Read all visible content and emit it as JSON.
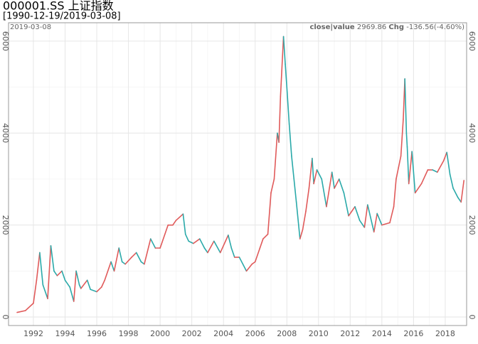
{
  "chart_data": {
    "type": "line",
    "title": "000001.SS 上证指数",
    "subtitle": "[1990-12-19/2019-03-08]",
    "date_label": "2019-03-08",
    "legend_label": "close|value",
    "last_value": "2969.86",
    "chg_label": "Chg",
    "chg_value": "-136.56(-4.60%)",
    "up_color": "#e05a5a",
    "down_color": "#2aa9a9",
    "grid": true,
    "xlim": [
      1990.43,
      2019.35
    ],
    "xticks": [
      1992,
      1994,
      1996,
      1998,
      2000,
      2002,
      2004,
      2006,
      2008,
      2010,
      2012,
      2014,
      2016,
      2018
    ],
    "ylim": [
      -185,
      6400
    ],
    "yticks": [
      0,
      2000,
      4000,
      6000
    ],
    "series": [
      {
        "name": "close",
        "x": [
          1990.97,
          1991.5,
          1992.0,
          1992.2,
          1992.4,
          1992.6,
          1992.9,
          1993.1,
          1993.3,
          1993.5,
          1993.8,
          1994.0,
          1994.3,
          1994.55,
          1994.7,
          1994.9,
          1995.0,
          1995.4,
          1995.6,
          1996.0,
          1996.3,
          1996.5,
          1996.9,
          1997.1,
          1997.4,
          1997.6,
          1997.8,
          1998.2,
          1998.5,
          1998.8,
          1999.0,
          1999.4,
          1999.7,
          2000.0,
          2000.3,
          2000.5,
          2000.8,
          2001.0,
          2001.45,
          2001.6,
          2001.8,
          2002.1,
          2002.5,
          2002.8,
          2003.0,
          2003.4,
          2003.8,
          2004.3,
          2004.5,
          2004.7,
          2005.0,
          2005.45,
          2005.8,
          2006.0,
          2006.3,
          2006.5,
          2006.8,
          2007.0,
          2007.2,
          2007.4,
          2007.5,
          2007.6,
          2007.79,
          2007.9,
          2008.0,
          2008.15,
          2008.3,
          2008.45,
          2008.6,
          2008.83,
          2009.0,
          2009.2,
          2009.4,
          2009.6,
          2009.7,
          2009.9,
          2010.2,
          2010.5,
          2010.85,
          2011.0,
          2011.3,
          2011.6,
          2011.9,
          2012.1,
          2012.3,
          2012.6,
          2012.9,
          2013.1,
          2013.5,
          2013.7,
          2014.0,
          2014.5,
          2014.75,
          2014.9,
          2015.2,
          2015.35,
          2015.45,
          2015.55,
          2015.6,
          2015.7,
          2015.9,
          2016.1,
          2016.5,
          2016.9,
          2017.2,
          2017.5,
          2017.9,
          2018.1,
          2018.3,
          2018.5,
          2018.8,
          2019.0,
          2019.18
        ],
        "values": [
          100,
          140,
          300,
          800,
          1400,
          700,
          400,
          1550,
          1000,
          900,
          1000,
          800,
          650,
          340,
          1000,
          700,
          620,
          800,
          600,
          550,
          650,
          800,
          1200,
          1000,
          1500,
          1200,
          1150,
          1300,
          1400,
          1200,
          1150,
          1700,
          1500,
          1500,
          1800,
          2000,
          2000,
          2100,
          2240,
          1800,
          1650,
          1600,
          1700,
          1500,
          1400,
          1650,
          1400,
          1780,
          1500,
          1300,
          1300,
          1000,
          1150,
          1200,
          1500,
          1700,
          1800,
          2700,
          3000,
          4000,
          3800,
          4800,
          6100,
          5500,
          5000,
          4200,
          3500,
          3000,
          2500,
          1700,
          1900,
          2300,
          2800,
          3450,
          2900,
          3200,
          3000,
          2400,
          3150,
          2800,
          3000,
          2700,
          2200,
          2300,
          2400,
          2100,
          1950,
          2440,
          1850,
          2250,
          2000,
          2050,
          2400,
          3000,
          3500,
          4300,
          5180,
          4000,
          3700,
          2900,
          3600,
          2700,
          2900,
          3200,
          3200,
          3150,
          3400,
          3580,
          3100,
          2800,
          2600,
          2500,
          2969.86
        ]
      }
    ]
  }
}
